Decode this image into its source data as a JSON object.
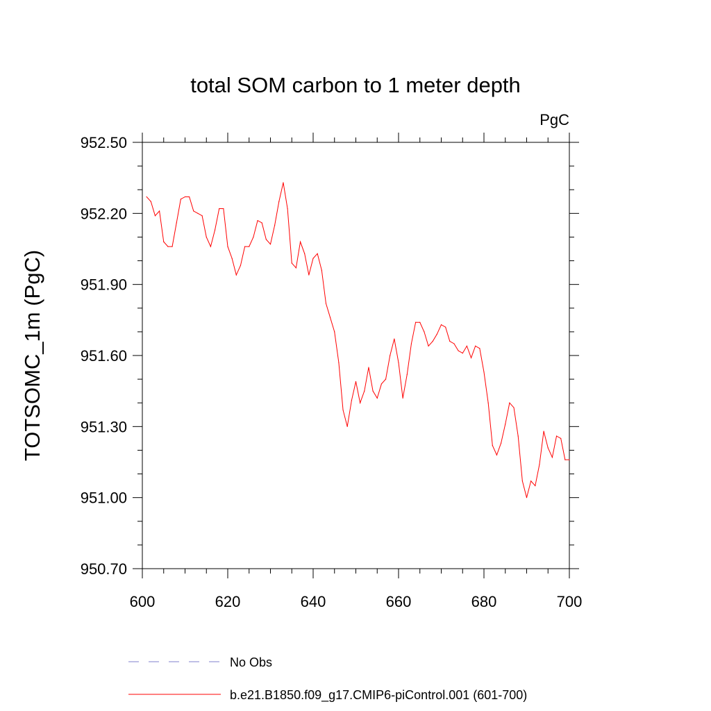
{
  "chart_data": {
    "type": "line",
    "title": "total SOM carbon to 1 meter depth",
    "units": "PgC",
    "ylabel": "TOTSOMC_1m  (PgC)",
    "xlabel": "",
    "xlim": [
      600,
      700
    ],
    "ylim": [
      950.7,
      952.5
    ],
    "xticks": [
      "600",
      "620",
      "640",
      "660",
      "680",
      "700"
    ],
    "yticks": [
      "950.70",
      "951.00",
      "951.30",
      "951.60",
      "951.90",
      "952.20",
      "952.50"
    ],
    "grid": false,
    "series": [
      {
        "name": "b.e21.B1850.f09_g17.CMIP6-piControl.001 (601-700)",
        "color": "#ff0000",
        "style": "solid",
        "x": [
          601,
          602,
          603,
          604,
          605,
          606,
          607,
          608,
          609,
          610,
          611,
          612,
          613,
          614,
          615,
          616,
          617,
          618,
          619,
          620,
          621,
          622,
          623,
          624,
          625,
          626,
          627,
          628,
          629,
          630,
          631,
          632,
          633,
          634,
          635,
          636,
          637,
          638,
          639,
          640,
          641,
          642,
          643,
          644,
          645,
          646,
          647,
          648,
          649,
          650,
          651,
          652,
          653,
          654,
          655,
          656,
          657,
          658,
          659,
          660,
          661,
          662,
          663,
          664,
          665,
          666,
          667,
          668,
          669,
          670,
          671,
          672,
          673,
          674,
          675,
          676,
          677,
          678,
          679,
          680,
          681,
          682,
          683,
          684,
          685,
          686,
          687,
          688,
          689,
          690,
          691,
          692,
          693,
          694,
          695,
          696,
          697,
          698,
          699,
          700
        ],
        "values": [
          952.27,
          952.25,
          952.19,
          952.21,
          952.08,
          952.06,
          952.06,
          952.16,
          952.26,
          952.27,
          952.27,
          952.21,
          952.2,
          952.19,
          952.1,
          952.06,
          952.13,
          952.22,
          952.22,
          952.06,
          952.01,
          951.94,
          951.98,
          952.06,
          952.06,
          952.1,
          952.17,
          952.16,
          952.09,
          952.07,
          952.15,
          952.25,
          952.33,
          952.22,
          951.99,
          951.97,
          952.08,
          952.03,
          951.94,
          952.01,
          952.03,
          951.96,
          951.82,
          951.76,
          951.7,
          951.57,
          951.37,
          951.3,
          951.41,
          951.49,
          951.4,
          951.45,
          951.55,
          951.45,
          951.42,
          951.48,
          951.5,
          951.6,
          951.67,
          951.57,
          951.42,
          951.52,
          951.65,
          951.74,
          951.74,
          951.7,
          951.64,
          951.66,
          951.69,
          951.73,
          951.72,
          951.66,
          951.65,
          951.62,
          951.61,
          951.64,
          951.59,
          951.64,
          951.63,
          951.53,
          951.4,
          951.22,
          951.18,
          951.23,
          951.31,
          951.4,
          951.38,
          951.26,
          951.07,
          951.0,
          951.07,
          951.05,
          951.14,
          951.28,
          951.21,
          951.17,
          951.26,
          951.25,
          951.16,
          951.16
        ]
      }
    ],
    "legend": {
      "placement": "bottom",
      "entries": [
        {
          "label": "No Obs",
          "color": "#7f7fcc",
          "style": "dashed"
        },
        {
          "label": "b.e21.B1850.f09_g17.CMIP6-piControl.001 (601-700)",
          "color": "#ff0000",
          "style": "solid"
        }
      ]
    }
  }
}
